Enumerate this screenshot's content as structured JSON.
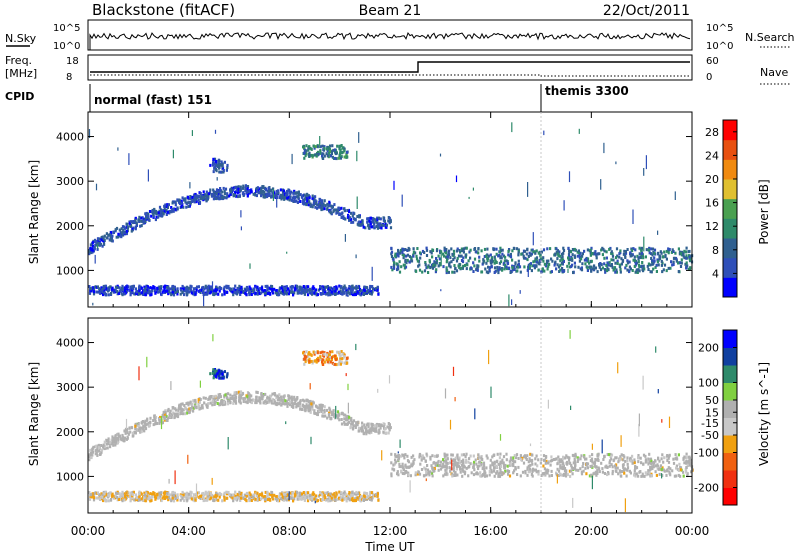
{
  "header": {
    "station": "Blackstone (fitACF)",
    "beam": "Beam 21",
    "date": "22/Oct/2011"
  },
  "strip_labels": {
    "nsky": "N.Sky",
    "nsky_ticks": [
      "10^5",
      "10^0"
    ],
    "nsearch": "N.Search",
    "nsearch_ticks": [
      "10^5",
      "10^0"
    ],
    "freq": "Freq.",
    "freq_unit": "[MHz]",
    "freq_ticks": [
      "18",
      "8"
    ],
    "nave": "Nave",
    "nave_ticks": [
      "60",
      "0"
    ],
    "cpid": "CPID"
  },
  "cpid_segments": [
    {
      "label": "normal (fast) 151",
      "start_hour": 0
    },
    {
      "label": "themis 3300",
      "start_hour": 18
    }
  ],
  "colors": {
    "power_scale": [
      "#0000ff",
      "#2f4fb8",
      "#306090",
      "#2e8a6a",
      "#4aa050",
      "#e0c030",
      "#f08a10",
      "#e85010",
      "#ff0000"
    ],
    "velocity_scale": [
      "#ff0000",
      "#f03010",
      "#f06010",
      "#f0a010",
      "#c8c8c8",
      "#b0b0b0",
      "#80d040",
      "#2e8a6a",
      "#1040a0",
      "#0000ff"
    ],
    "ground_scatter": "#b0b0b0"
  },
  "chart_data": [
    {
      "type": "heatmap",
      "panel": "power",
      "xlabel": "Time UT",
      "ylabel": "Slant Range [km]",
      "xlim": [
        0,
        24
      ],
      "ylim": [
        180,
        4550
      ],
      "xticks": [
        "00:00",
        "04:00",
        "08:00",
        "12:00",
        "16:00",
        "20:00",
        "00:00"
      ],
      "yticks": [
        1000,
        2000,
        3000,
        4000
      ],
      "colorbar": {
        "label": "Power [dB]",
        "ticks": [
          4,
          8,
          12,
          16,
          20,
          24,
          28
        ],
        "range": [
          0,
          30
        ]
      },
      "features": [
        {
          "name": "rising scatter band",
          "hours": [
            0,
            12
          ],
          "range_km": [
            1400,
            2600
          ],
          "power_db": 6
        },
        {
          "name": "upper scatter patch",
          "hours": [
            8.5,
            10.3
          ],
          "range_km": [
            3500,
            3800
          ],
          "power_db": 10
        },
        {
          "name": "scatter patch",
          "hours": [
            4.8,
            5.5
          ],
          "range_km": [
            3200,
            3500
          ],
          "power_db": 6
        },
        {
          "name": "afternoon scatter band",
          "hours": [
            12,
            24
          ],
          "range_km": [
            950,
            1500
          ],
          "power_db": 9
        },
        {
          "name": "near range echoes",
          "hours": [
            0,
            11.5
          ],
          "range_km": [
            450,
            650
          ],
          "power_db": 5
        }
      ]
    },
    {
      "type": "heatmap",
      "panel": "velocity",
      "xlabel": "Time UT",
      "ylabel": "Slant Range [km]",
      "xlim": [
        0,
        24
      ],
      "ylim": [
        180,
        4550
      ],
      "xticks": [
        "00:00",
        "04:00",
        "08:00",
        "12:00",
        "16:00",
        "20:00",
        "00:00"
      ],
      "yticks": [
        1000,
        2000,
        3000,
        4000
      ],
      "colorbar": {
        "label": "Velocity [m s^-1]",
        "ticks": [
          200,
          100,
          50,
          15,
          -15,
          -50,
          -100,
          -200
        ],
        "range": [
          -250,
          250
        ]
      },
      "features": [
        {
          "name": "rising scatter band",
          "hours": [
            0,
            12
          ],
          "range_km": [
            1400,
            2600
          ],
          "velocity": 0
        },
        {
          "name": "upper scatter patch",
          "hours": [
            8.5,
            10.3
          ],
          "range_km": [
            3500,
            3800
          ],
          "velocity": -80
        },
        {
          "name": "scatter patch",
          "hours": [
            4.8,
            5.5
          ],
          "range_km": [
            3200,
            3400
          ],
          "velocity": 180
        },
        {
          "name": "afternoon scatter band",
          "hours": [
            12,
            24
          ],
          "range_km": [
            1000,
            1500
          ],
          "velocity": 0
        },
        {
          "name": "near range echoes",
          "hours": [
            0,
            11.5
          ],
          "range_km": [
            450,
            650
          ],
          "velocity": -30
        }
      ]
    }
  ]
}
